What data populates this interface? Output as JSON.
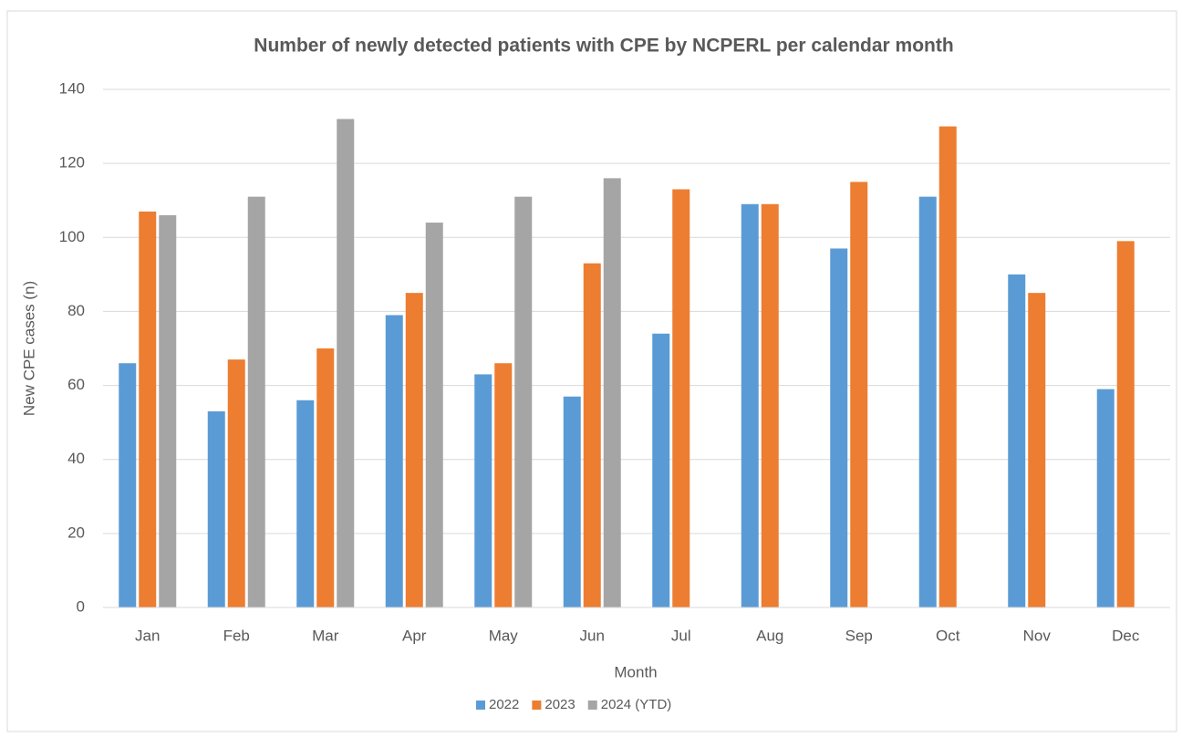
{
  "chart_data": {
    "type": "bar",
    "title": "Number of newly detected patients with CPE by NCPERL per calendar month",
    "x_label": "Month",
    "y_label": "New CPE cases (n)",
    "categories": [
      "Jan",
      "Feb",
      "Mar",
      "Apr",
      "May",
      "Jun",
      "Jul",
      "Aug",
      "Sep",
      "Oct",
      "Nov",
      "Dec"
    ],
    "series": [
      {
        "name": "2022",
        "color": "#5b9bd5",
        "values": [
          66,
          53,
          56,
          79,
          63,
          57,
          74,
          109,
          97,
          111,
          90,
          59
        ]
      },
      {
        "name": "2023",
        "color": "#ed7d31",
        "values": [
          107,
          67,
          70,
          85,
          66,
          93,
          113,
          109,
          115,
          130,
          85,
          99
        ]
      },
      {
        "name": "2024 (YTD)",
        "color": "#a5a5a5",
        "values": [
          106,
          111,
          132,
          104,
          111,
          116,
          null,
          null,
          null,
          null,
          null,
          null
        ]
      }
    ],
    "ylim": [
      0,
      140
    ],
    "yticks": [
      0,
      20,
      40,
      60,
      80,
      100,
      120,
      140
    ],
    "grid": true,
    "legend": "bottom"
  }
}
